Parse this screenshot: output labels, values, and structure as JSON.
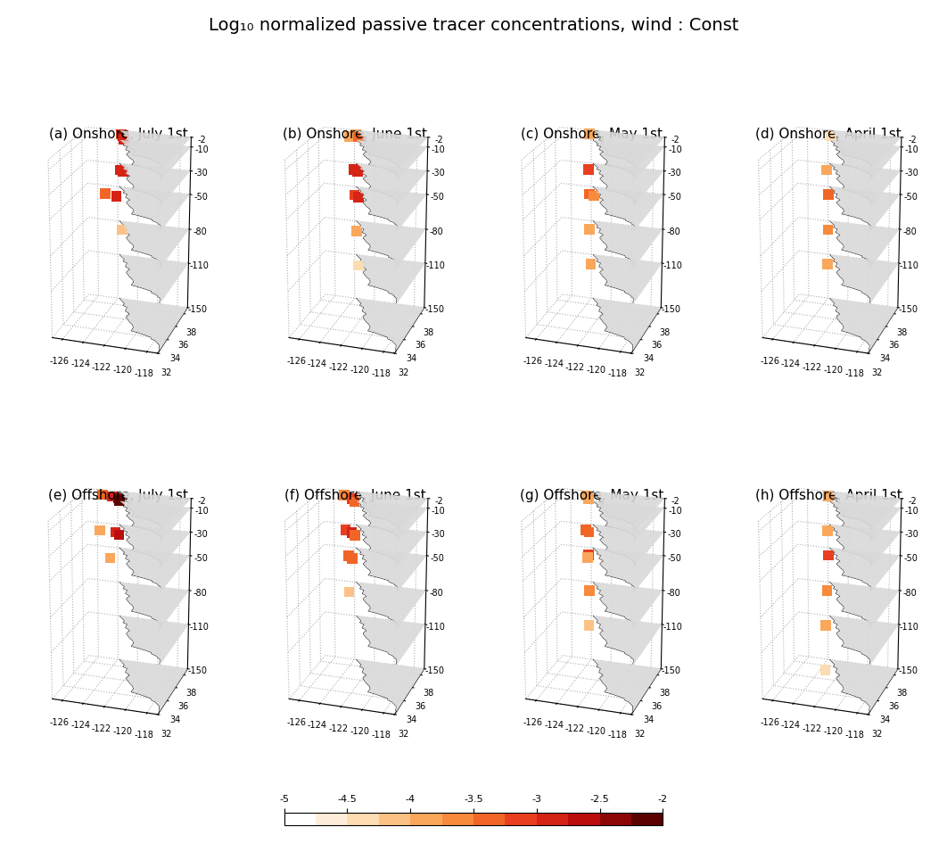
{
  "title": "Log₁₀ normalized passive tracer concentrations, wind : Const",
  "axes": {
    "xlim": [
      -127,
      -117
    ],
    "xticks": [
      -126,
      -124,
      -122,
      -120,
      -118
    ],
    "ylim": [
      32,
      39
    ],
    "yticks": [
      32,
      34,
      36,
      38
    ],
    "zlim": [
      -150,
      -2
    ],
    "zticks": [
      -2,
      -10,
      -30,
      -50,
      -80,
      -110,
      -150
    ],
    "grid": true
  },
  "coastline": {
    "lon": [
      -117.1,
      -117.3,
      -117.9,
      -118.4,
      -118.5,
      -119.2,
      -120.0,
      -120.6,
      -120.6,
      -120.9,
      -121.3,
      -121.9,
      -121.9,
      -121.8,
      -122.0,
      -122.4,
      -122.5,
      -123.0,
      -123.0,
      -123.7,
      -123.8
    ],
    "lat": [
      32.5,
      33.1,
      33.6,
      33.8,
      34.0,
      34.2,
      34.4,
      34.5,
      35.0,
      35.4,
      35.7,
      36.3,
      36.6,
      36.8,
      37.0,
      37.2,
      37.8,
      38.0,
      38.3,
      38.9,
      39.0
    ]
  },
  "colorbar": {
    "range": [
      -5,
      -2
    ],
    "ticks": [
      -5,
      -4.5,
      -4,
      -3.5,
      -3,
      -2.5,
      -2
    ]
  },
  "chart_data": [
    {
      "type": "map3d",
      "title": "(a) Onshore, July 1st",
      "tracer": [
        [
          -2,
          -123.0,
          38.0,
          -3.0
        ],
        [
          -2,
          -122.8,
          37.6,
          -2.5
        ],
        [
          -2,
          -122.6,
          37.3,
          -2.8
        ],
        [
          -2,
          -123.3,
          38.2,
          -3.2
        ],
        [
          -30,
          -123.2,
          37.8,
          -2.8
        ],
        [
          -30,
          -122.8,
          37.5,
          -3.0
        ],
        [
          -50,
          -124.5,
          37.5,
          -3.5
        ],
        [
          -50,
          -123.3,
          37.2,
          -3.0
        ],
        [
          -80,
          -122.9,
          37.6,
          -4.2
        ]
      ]
    },
    {
      "type": "map3d",
      "title": "(b) Onshore, June 1st",
      "tracer": [
        [
          -2,
          -123.5,
          38.2,
          -3.8
        ],
        [
          -2,
          -123.0,
          37.7,
          -3.5
        ],
        [
          -2,
          -123.8,
          37.6,
          -4.0
        ],
        [
          -30,
          -123.5,
          37.8,
          -3.0
        ],
        [
          -30,
          -123.0,
          37.5,
          -2.8
        ],
        [
          -50,
          -123.3,
          37.5,
          -3.2
        ],
        [
          -50,
          -122.8,
          37.2,
          -3.0
        ],
        [
          -80,
          -123.0,
          37.3,
          -3.8
        ],
        [
          -110,
          -122.8,
          37.3,
          -4.3
        ]
      ]
    },
    {
      "type": "map3d",
      "title": "(c) Onshore, May 1st",
      "tracer": [
        [
          -2,
          -123.8,
          38.2,
          -4.0
        ],
        [
          -30,
          -123.7,
          37.8,
          -3.2
        ],
        [
          -50,
          -123.5,
          37.6,
          -3.3
        ],
        [
          -50,
          -123.0,
          37.4,
          -3.6
        ],
        [
          -80,
          -123.5,
          37.5,
          -3.8
        ],
        [
          -110,
          -123.3,
          37.4,
          -4.0
        ]
      ]
    },
    {
      "type": "map3d",
      "title": "(d) Onshore, April 1st",
      "tracer": [
        [
          -2,
          -123.2,
          37.9,
          -4.5
        ],
        [
          -30,
          -123.5,
          37.7,
          -3.8
        ],
        [
          -50,
          -123.3,
          37.6,
          -3.3
        ],
        [
          -80,
          -123.3,
          37.5,
          -3.6
        ],
        [
          -110,
          -123.3,
          37.4,
          -3.8
        ]
      ]
    },
    {
      "type": "map3d",
      "title": "(e) Offshore, July 1st",
      "tracer": [
        [
          -2,
          -125.0,
          38.0,
          -3.5
        ],
        [
          -2,
          -124.0,
          37.8,
          -3.0
        ],
        [
          -2,
          -123.3,
          37.6,
          -2.5
        ],
        [
          -2,
          -123.0,
          37.2,
          -2.2
        ],
        [
          -30,
          -125.0,
          37.5,
          -4.0
        ],
        [
          -30,
          -123.5,
          37.5,
          -3.0
        ],
        [
          -30,
          -123.0,
          37.1,
          -2.7
        ],
        [
          -50,
          -123.8,
          37.0,
          -3.8
        ]
      ]
    },
    {
      "type": "map3d",
      "title": "(f) Offshore, June 1st",
      "tracer": [
        [
          -2,
          -124.5,
          38.0,
          -3.6
        ],
        [
          -2,
          -123.5,
          37.5,
          -3.2
        ],
        [
          -2,
          -123.0,
          36.9,
          -3.4
        ],
        [
          -30,
          -124.3,
          37.8,
          -3.2
        ],
        [
          -30,
          -123.5,
          37.4,
          -2.9
        ],
        [
          -30,
          -123.0,
          37.0,
          -3.3
        ],
        [
          -50,
          -123.8,
          37.4,
          -3.5
        ],
        [
          -50,
          -123.3,
          37.0,
          -3.3
        ],
        [
          -80,
          -123.7,
          37.2,
          -4.2
        ]
      ]
    },
    {
      "type": "map3d",
      "title": "(g) Offshore, May 1st",
      "tracer": [
        [
          -2,
          -124.0,
          38.0,
          -3.8
        ],
        [
          -2,
          -123.5,
          37.4,
          -3.8
        ],
        [
          -30,
          -124.0,
          37.9,
          -3.3
        ],
        [
          -30,
          -123.5,
          37.5,
          -3.5
        ],
        [
          -50,
          -123.6,
          37.6,
          -3.2
        ],
        [
          -50,
          -123.5,
          37.2,
          -3.8
        ],
        [
          -80,
          -123.5,
          37.5,
          -3.6
        ],
        [
          -110,
          -123.5,
          37.4,
          -4.2
        ]
      ]
    },
    {
      "type": "map3d",
      "title": "(h) Offshore, April 1st",
      "tracer": [
        [
          -2,
          -123.5,
          38.0,
          -4.0
        ],
        [
          -30,
          -123.5,
          37.8,
          -3.8
        ],
        [
          -50,
          -123.3,
          37.6,
          -3.2
        ],
        [
          -80,
          -123.4,
          37.5,
          -3.6
        ],
        [
          -110,
          -123.5,
          37.4,
          -3.8
        ],
        [
          -150,
          -123.5,
          37.3,
          -4.5
        ]
      ]
    }
  ]
}
